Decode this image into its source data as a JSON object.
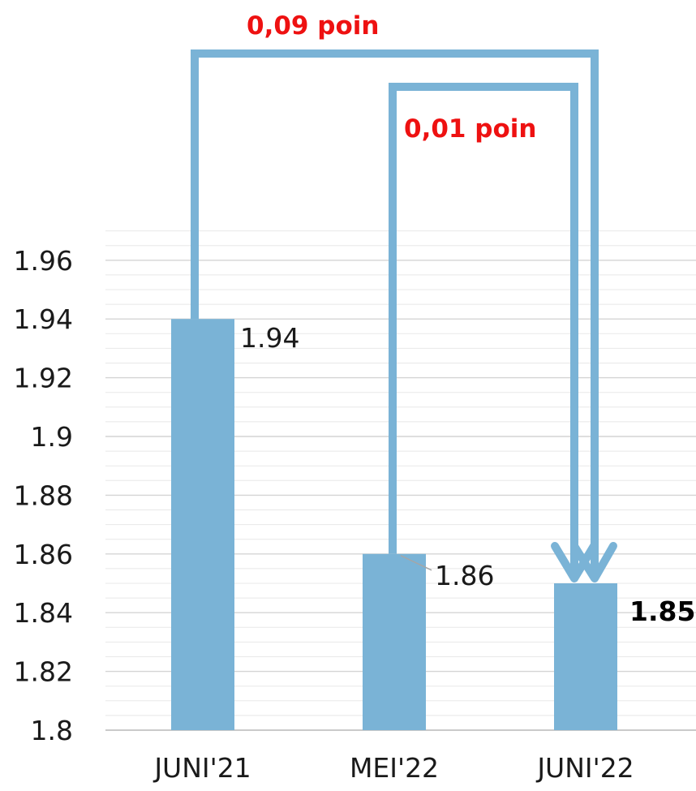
{
  "chart_data": {
    "type": "bar",
    "categories": [
      "JUNI'21",
      "MEI'22",
      "JUNI'22"
    ],
    "values": [
      1.94,
      1.86,
      1.85
    ],
    "data_labels": [
      "1.94",
      "1.86",
      "1.85"
    ],
    "highlighted_label_index": 2,
    "ylim": [
      1.8,
      1.97
    ],
    "yticks": [
      1.8,
      1.82,
      1.84,
      1.86,
      1.88,
      1.9,
      1.92,
      1.94,
      1.96
    ],
    "ytick_labels": [
      "1.8",
      "1.82",
      "1.84",
      "1.86",
      "1.88",
      "1.9",
      "1.92",
      "1.94",
      "1.96"
    ],
    "grid": true,
    "title": "",
    "xlabel": "",
    "ylabel": "",
    "bar_color": "#7ab3d6",
    "annotations": [
      {
        "text": "0,09 poin",
        "from_category": "JUNI'21",
        "to_category": "JUNI'22",
        "color": "#ee1111"
      },
      {
        "text": "0,01 poin",
        "from_category": "MEI'22",
        "to_category": "JUNI'22",
        "color": "#ee1111"
      }
    ]
  }
}
